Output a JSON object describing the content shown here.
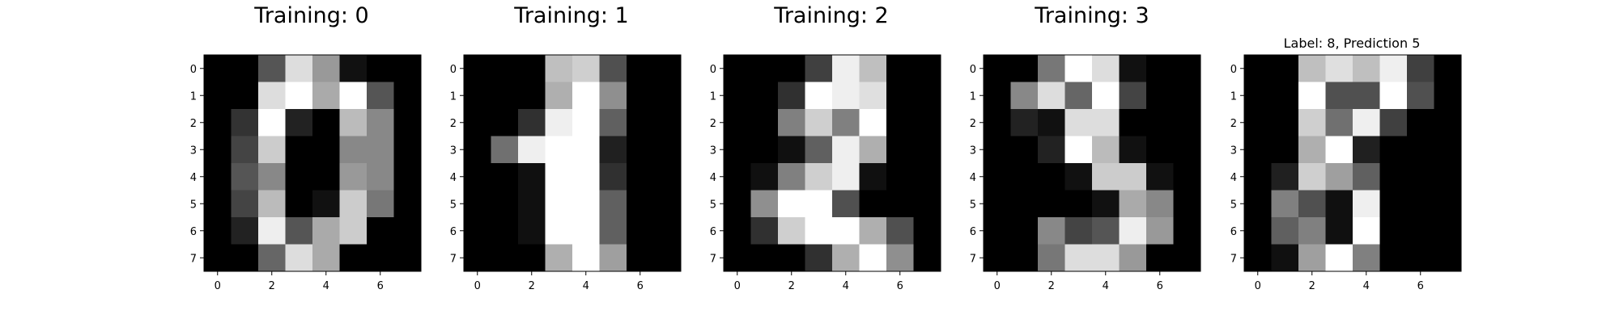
{
  "chart_data": [
    {
      "type": "heatmap",
      "title": "Training: 0",
      "colormap": "gray",
      "xticks": [
        "0",
        "2",
        "4",
        "6"
      ],
      "yticks": [
        "0",
        "1",
        "2",
        "3",
        "4",
        "5",
        "6",
        "7"
      ],
      "values": [
        [
          0,
          0,
          5,
          13,
          9,
          1,
          0,
          0
        ],
        [
          0,
          0,
          13,
          15,
          10,
          15,
          5,
          0
        ],
        [
          0,
          3,
          15,
          2,
          0,
          11,
          8,
          0
        ],
        [
          0,
          4,
          12,
          0,
          0,
          8,
          8,
          0
        ],
        [
          0,
          5,
          8,
          0,
          0,
          9,
          8,
          0
        ],
        [
          0,
          4,
          11,
          0,
          1,
          12,
          7,
          0
        ],
        [
          0,
          2,
          14,
          5,
          10,
          12,
          0,
          0
        ],
        [
          0,
          0,
          6,
          13,
          10,
          0,
          0,
          0
        ]
      ]
    },
    {
      "type": "heatmap",
      "title": "Training: 1",
      "colormap": "gray",
      "xticks": [
        "0",
        "2",
        "4",
        "6"
      ],
      "yticks": [
        "0",
        "1",
        "2",
        "3",
        "4",
        "5",
        "6",
        "7"
      ],
      "values": [
        [
          0,
          0,
          0,
          12,
          13,
          5,
          0,
          0
        ],
        [
          0,
          0,
          0,
          11,
          16,
          9,
          0,
          0
        ],
        [
          0,
          0,
          3,
          15,
          16,
          6,
          0,
          0
        ],
        [
          0,
          7,
          15,
          16,
          16,
          2,
          0,
          0
        ],
        [
          0,
          0,
          1,
          16,
          16,
          3,
          0,
          0
        ],
        [
          0,
          0,
          1,
          16,
          16,
          6,
          0,
          0
        ],
        [
          0,
          0,
          1,
          16,
          16,
          6,
          0,
          0
        ],
        [
          0,
          0,
          0,
          11,
          16,
          10,
          0,
          0
        ]
      ]
    },
    {
      "type": "heatmap",
      "title": "Training: 2",
      "colormap": "gray",
      "xticks": [
        "0",
        "2",
        "4",
        "6"
      ],
      "yticks": [
        "0",
        "1",
        "2",
        "3",
        "4",
        "5",
        "6",
        "7"
      ],
      "values": [
        [
          0,
          0,
          0,
          4,
          15,
          12,
          0,
          0
        ],
        [
          0,
          0,
          3,
          16,
          15,
          14,
          0,
          0
        ],
        [
          0,
          0,
          8,
          13,
          8,
          16,
          0,
          0
        ],
        [
          0,
          0,
          1,
          6,
          15,
          11,
          0,
          0
        ],
        [
          0,
          1,
          8,
          13,
          15,
          1,
          0,
          0
        ],
        [
          0,
          9,
          16,
          16,
          5,
          0,
          0,
          0
        ],
        [
          0,
          3,
          13,
          16,
          16,
          11,
          5,
          0
        ],
        [
          0,
          0,
          0,
          3,
          11,
          16,
          9,
          0
        ]
      ]
    },
    {
      "type": "heatmap",
      "title": "Training: 3",
      "colormap": "gray",
      "xticks": [
        "0",
        "2",
        "4",
        "6"
      ],
      "yticks": [
        "0",
        "1",
        "2",
        "3",
        "4",
        "5",
        "6",
        "7"
      ],
      "values": [
        [
          0,
          0,
          7,
          15,
          13,
          1,
          0,
          0
        ],
        [
          0,
          8,
          13,
          6,
          15,
          4,
          0,
          0
        ],
        [
          0,
          2,
          1,
          13,
          13,
          0,
          0,
          0
        ],
        [
          0,
          0,
          2,
          15,
          11,
          1,
          0,
          0
        ],
        [
          0,
          0,
          0,
          1,
          12,
          12,
          1,
          0
        ],
        [
          0,
          0,
          0,
          0,
          1,
          10,
          8,
          0
        ],
        [
          0,
          0,
          8,
          4,
          5,
          14,
          9,
          0
        ],
        [
          0,
          0,
          7,
          13,
          13,
          9,
          0,
          0
        ]
      ]
    },
    {
      "type": "heatmap",
      "title": "Label: 8, Prediction 5",
      "colormap": "gray",
      "xticks": [
        "0",
        "2",
        "4",
        "6"
      ],
      "yticks": [
        "0",
        "1",
        "2",
        "3",
        "4",
        "5",
        "6",
        "7"
      ],
      "values": [
        [
          0,
          0,
          12,
          14,
          12,
          15,
          4,
          0
        ],
        [
          0,
          0,
          16,
          5,
          5,
          16,
          5,
          0
        ],
        [
          0,
          0,
          13,
          7,
          15,
          4,
          0,
          0
        ],
        [
          0,
          0,
          11,
          16,
          2,
          0,
          0,
          0
        ],
        [
          0,
          2,
          13,
          10,
          6,
          0,
          0,
          0
        ],
        [
          0,
          8,
          5,
          1,
          15,
          0,
          0,
          0
        ],
        [
          0,
          6,
          8,
          1,
          16,
          0,
          0,
          0
        ],
        [
          0,
          1,
          10,
          16,
          8,
          0,
          0,
          0
        ]
      ]
    }
  ]
}
